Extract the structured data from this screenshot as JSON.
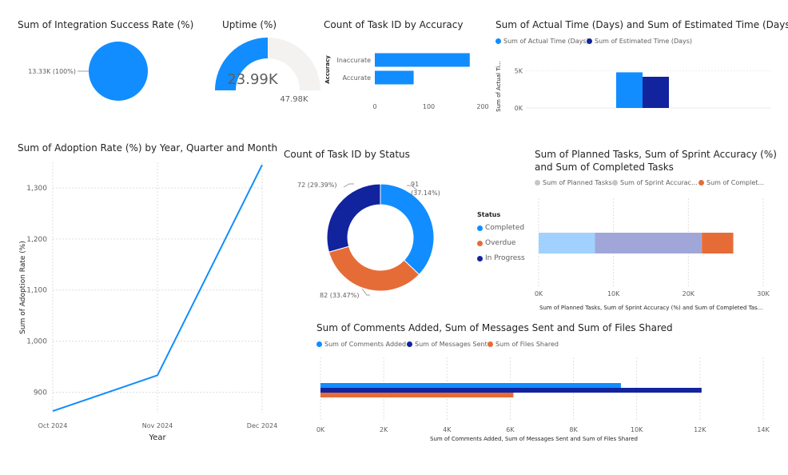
{
  "visuals": {
    "integration": {
      "title": "Sum of Integration Success Rate (%)",
      "chart_data": {
        "type": "pie",
        "slices": [
          {
            "value": 13330,
            "label": "13.33K (100%)",
            "color": "#118DFF"
          }
        ]
      }
    },
    "uptime": {
      "title": "Uptime (%)",
      "chart_data": {
        "type": "gauge",
        "value": 23990,
        "value_label": "23.99K",
        "min": 0,
        "max": 47980,
        "max_label": "47.98K",
        "color": "#118DFF"
      }
    },
    "accuracy": {
      "title": "Count of Task ID by Accuracy",
      "chart_data": {
        "type": "bar",
        "orientation": "horizontal",
        "categories": [
          "Inaccurate",
          "Accurate"
        ],
        "values": [
          176,
          72
        ],
        "ylabel": "Accuracy",
        "xlim": [
          0,
          200
        ],
        "ticks": [
          0,
          100,
          200
        ],
        "tick_labels": [
          "0",
          "100",
          "200"
        ],
        "color": "#118DFF"
      }
    },
    "time": {
      "title": "Sum of Actual Time (Days) and Sum of Estimated Time (Days)",
      "chart_data": {
        "type": "bar",
        "series": [
          {
            "name": "Sum of Actual Time (Days)",
            "values": [
              4800
            ],
            "color": "#118DFF"
          },
          {
            "name": "Sum of Estimated Time (Days)",
            "values": [
              4200
            ],
            "color": "#12239E"
          }
        ],
        "ylabel": "Sum of Actual Ti...",
        "ylim": [
          0,
          7000
        ],
        "ticks": [
          0,
          5000
        ],
        "tick_labels": [
          "0K",
          "5K"
        ]
      }
    },
    "adoption": {
      "title": "Sum of Adoption Rate (%) by Year, Quarter and Month",
      "chart_data": {
        "type": "line",
        "x": [
          "Oct 2024",
          "Nov 2024",
          "Dec 2024"
        ],
        "y": [
          863,
          933,
          1345
        ],
        "xlabel": "Year",
        "ylabel": "Sum of Adoption Rate (%)",
        "ylim": [
          860,
          1350
        ],
        "ticks": [
          900,
          1000,
          1100,
          1200,
          1300
        ],
        "tick_labels": [
          "900",
          "1,000",
          "1,100",
          "1,200",
          "1,300"
        ],
        "color": "#118DFF"
      }
    },
    "status": {
      "title": "Count of Task ID by Status",
      "chart_data": {
        "type": "pie",
        "variant": "donut",
        "slices": [
          {
            "name": "Completed",
            "value": 91,
            "label": "91",
            "label2": "(37.14%)",
            "color": "#118DFF"
          },
          {
            "name": "Overdue",
            "value": 82,
            "label": "82 (33.47%)",
            "color": "#E66C37"
          },
          {
            "name": "In Progress",
            "value": 72,
            "label": "72 (29.39%)",
            "color": "#12239E"
          }
        ],
        "legend_title": "Status"
      }
    },
    "sprint": {
      "title_line1": "Sum of Planned Tasks, Sum of Sprint Accuracy (%)",
      "title_line2": "and Sum of Completed Tasks",
      "chart_data": {
        "type": "bar",
        "orientation": "horizontal",
        "stacked": true,
        "series": [
          {
            "name": "Sum of Planned Tasks",
            "legend": "Sum of Planned Tasks",
            "value": 7500,
            "color": "#A0D1FF"
          },
          {
            "name": "Sum of Sprint Accuracy (%)",
            "legend": "Sum of Sprint Accurac...",
            "value": 14300,
            "color": "#A0A7D8"
          },
          {
            "name": "Sum of Completed Tasks",
            "legend": "Sum of Complet...",
            "value": 4200,
            "color": "#E66C37"
          }
        ],
        "xlabel": "Sum of Planned Tasks, Sum of Sprint Accuracy (%) and Sum of Completed Tas...",
        "xlim": [
          0,
          30000
        ],
        "ticks": [
          0,
          10000,
          20000,
          30000
        ],
        "tick_labels": [
          "0K",
          "10K",
          "20K",
          "30K"
        ],
        "legend_colors": [
          "#C8C6C4",
          "#C8C6C4",
          "#E66C37"
        ]
      }
    },
    "comments": {
      "title": "Sum of Comments Added, Sum of Messages Sent and Sum of Files Shared",
      "chart_data": {
        "type": "bar",
        "orientation": "horizontal",
        "series": [
          {
            "name": "Sum of Comments Added",
            "value": 9500,
            "color": "#118DFF"
          },
          {
            "name": "Sum of Messages Sent",
            "value": 12050,
            "color": "#12239E"
          },
          {
            "name": "Sum of Files Shared",
            "value": 6100,
            "color": "#E66C37"
          }
        ],
        "xlabel": "Sum of Comments Added, Sum of Messages Sent and Sum of Files Shared",
        "xlim": [
          0,
          14000
        ],
        "ticks": [
          0,
          2000,
          4000,
          6000,
          8000,
          10000,
          12000,
          14000
        ],
        "tick_labels": [
          "0K",
          "2K",
          "4K",
          "6K",
          "8K",
          "10K",
          "12K",
          "14K"
        ]
      }
    }
  }
}
